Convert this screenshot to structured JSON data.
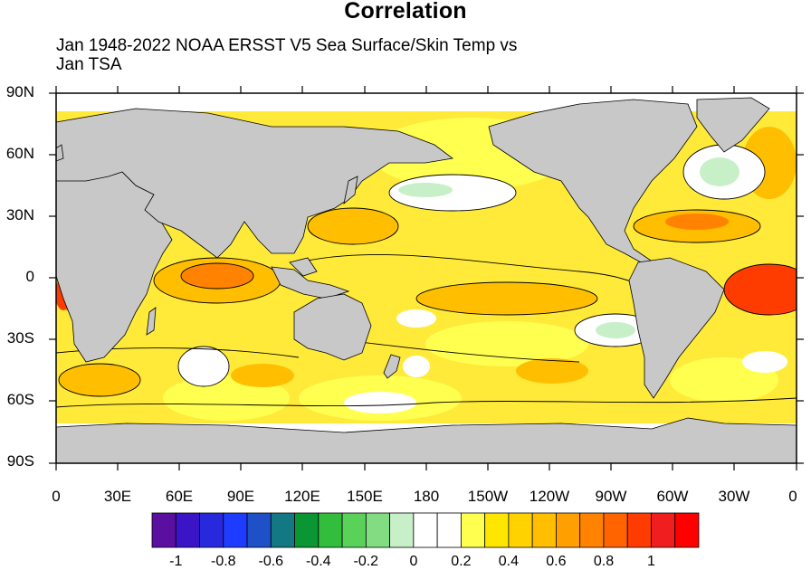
{
  "title": "Correlation",
  "subtitle_line1": "Jan 1948-2022 NOAA ERSST V5 Sea Surface/Skin Temp vs",
  "subtitle_line2": "Jan TSA",
  "lat_labels": [
    "90N",
    "60N",
    "30N",
    "0",
    "30S",
    "60S",
    "90S"
  ],
  "lon_labels": [
    "0",
    "30E",
    "60E",
    "90E",
    "120E",
    "150E",
    "180",
    "150W",
    "120W",
    "90W",
    "60W",
    "30W",
    "0"
  ],
  "colorbar": {
    "colors": [
      "#5a0fa0",
      "#3c14c8",
      "#2828dc",
      "#1e3cff",
      "#1e50c8",
      "#147882",
      "#0a9632",
      "#32be3c",
      "#5ad25a",
      "#82dc82",
      "#c8f0c8",
      "#ffffff",
      "#ffffff",
      "#ffff50",
      "#ffe600",
      "#ffd200",
      "#ffbe00",
      "#ffa000",
      "#ff8200",
      "#ff6400",
      "#ff3c00",
      "#f01e1e",
      "#ff0000"
    ],
    "labels": [
      "-1",
      "-0.8",
      "-0.6",
      "-0.4",
      "-0.2",
      "0",
      "0.2",
      "0.4",
      "0.6",
      "0.8",
      "1"
    ]
  },
  "colors": {
    "land": "#c8c8c8",
    "ocean_base": "#ffea3a",
    "missing": "#ffffff"
  }
}
